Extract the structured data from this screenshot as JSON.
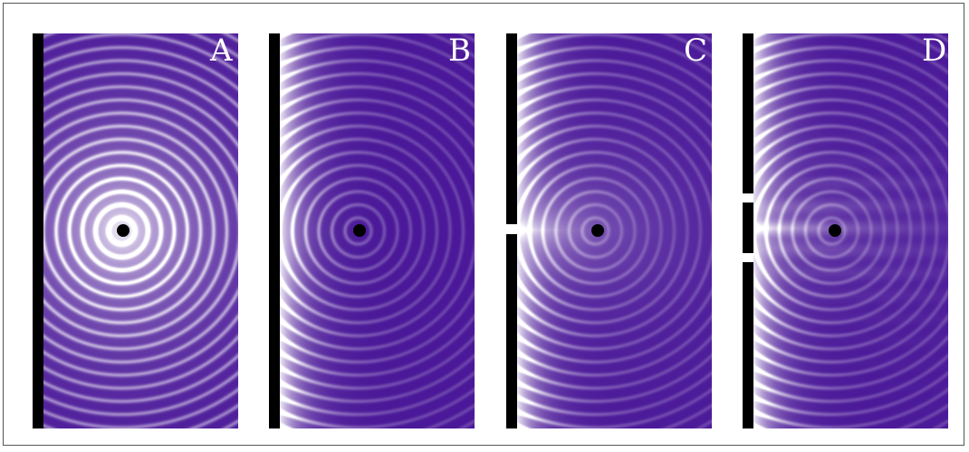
{
  "panels": [
    {
      "label": "A",
      "opening": "none"
    },
    {
      "label": "B",
      "opening": "none"
    },
    {
      "label": "C",
      "opening": "single-slit"
    },
    {
      "label": "D",
      "opening": "double-slit"
    }
  ],
  "colors": {
    "wave_dark": "#4a1898",
    "wave_light": "#ffffff",
    "barrier": "#000000",
    "source": "#000000",
    "label": "#ffffff"
  }
}
